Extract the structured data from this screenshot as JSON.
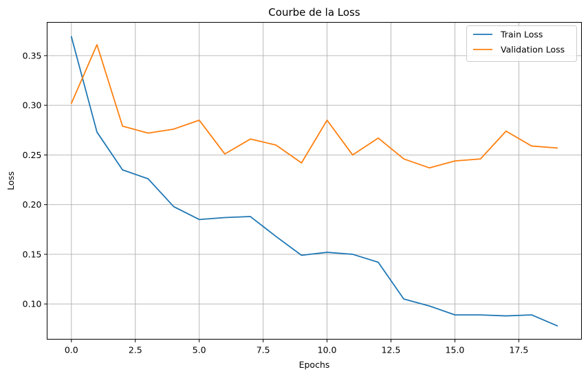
{
  "chart_data": {
    "type": "line",
    "title": "Courbe de la Loss",
    "xlabel": "Epochs",
    "ylabel": "Loss",
    "xlim": [
      -0.95,
      19.95
    ],
    "ylim": [
      0.0645,
      0.3835
    ],
    "xticks": [
      0,
      2.5,
      5,
      7.5,
      10,
      12.5,
      15,
      17.5
    ],
    "xtick_labels": [
      "0.0",
      "2.5",
      "5.0",
      "7.5",
      "10.0",
      "12.5",
      "15.0",
      "17.5"
    ],
    "yticks": [
      0.1,
      0.15,
      0.2,
      0.25,
      0.3,
      0.35
    ],
    "ytick_labels": [
      "0.10",
      "0.15",
      "0.20",
      "0.25",
      "0.30",
      "0.35"
    ],
    "grid": true,
    "legend_position": "top-right",
    "x": [
      0,
      1,
      2,
      3,
      4,
      5,
      6,
      7,
      8,
      9,
      10,
      11,
      12,
      13,
      14,
      15,
      16,
      17,
      18,
      19
    ],
    "series": [
      {
        "name": "Train Loss",
        "color": "#1f77b4",
        "values": [
          0.369,
          0.273,
          0.235,
          0.226,
          0.198,
          0.185,
          0.187,
          0.188,
          0.168,
          0.149,
          0.152,
          0.15,
          0.142,
          0.105,
          0.098,
          0.089,
          0.089,
          0.088,
          0.089,
          0.078
        ]
      },
      {
        "name": "Validation Loss",
        "color": "#ff7f0e",
        "values": [
          0.302,
          0.361,
          0.279,
          0.272,
          0.276,
          0.285,
          0.251,
          0.266,
          0.26,
          0.242,
          0.285,
          0.25,
          0.267,
          0.246,
          0.237,
          0.244,
          0.246,
          0.274,
          0.259,
          0.257
        ]
      }
    ]
  }
}
